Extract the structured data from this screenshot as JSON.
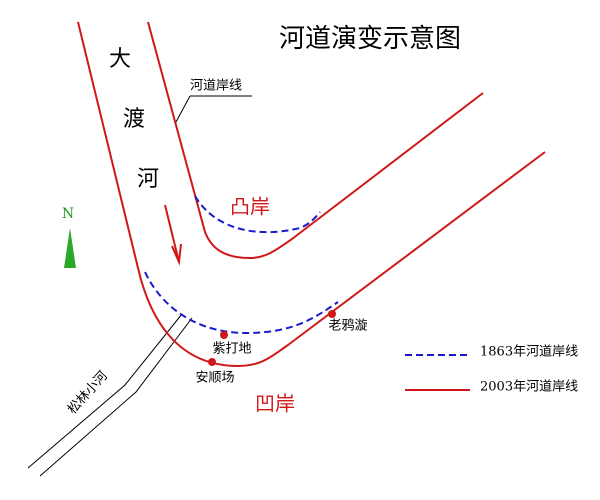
{
  "title": "河道演变示意图",
  "river_name": [
    "大",
    "渡",
    "河"
  ],
  "bank_label": "河道岸线",
  "convex_bank": "凸岸",
  "concave_bank": "凹岸",
  "places": [
    "紫打地",
    "安顺场",
    "老鸦漩"
  ],
  "tributary": "松林小河",
  "north": "N",
  "legend": [
    "1863年河道岸线",
    "2003年河道岸线"
  ]
}
